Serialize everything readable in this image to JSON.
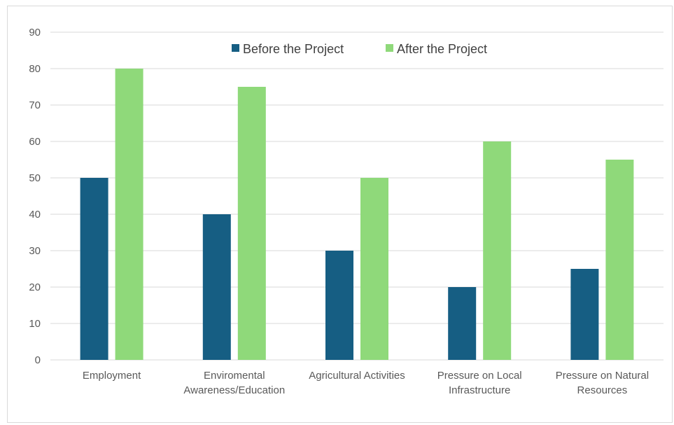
{
  "chart_data": {
    "type": "bar",
    "categories": [
      "Employment",
      "Enviromental Awareness/Education",
      "Agricultural Activities",
      "Pressure on Local Infrastructure",
      "Pressure on Natural Resources"
    ],
    "category_lines": [
      [
        "Employment"
      ],
      [
        "Enviromental",
        "Awareness/Education"
      ],
      [
        "Agricultural Activities"
      ],
      [
        "Pressure on Local",
        "Infrastructure"
      ],
      [
        "Pressure on Natural",
        "Resources"
      ]
    ],
    "series": [
      {
        "name": "Before the Project",
        "color": "#165e83",
        "values": [
          50,
          40,
          30,
          20,
          25
        ]
      },
      {
        "name": "After the Project",
        "color": "#8fd97a",
        "values": [
          80,
          75,
          50,
          60,
          55
        ]
      }
    ],
    "ylim": [
      0,
      90
    ],
    "yticks": [
      0,
      10,
      20,
      30,
      40,
      50,
      60,
      70,
      80,
      90
    ],
    "title": "",
    "xlabel": "",
    "ylabel": "",
    "grid": true,
    "legend_position": "top"
  }
}
